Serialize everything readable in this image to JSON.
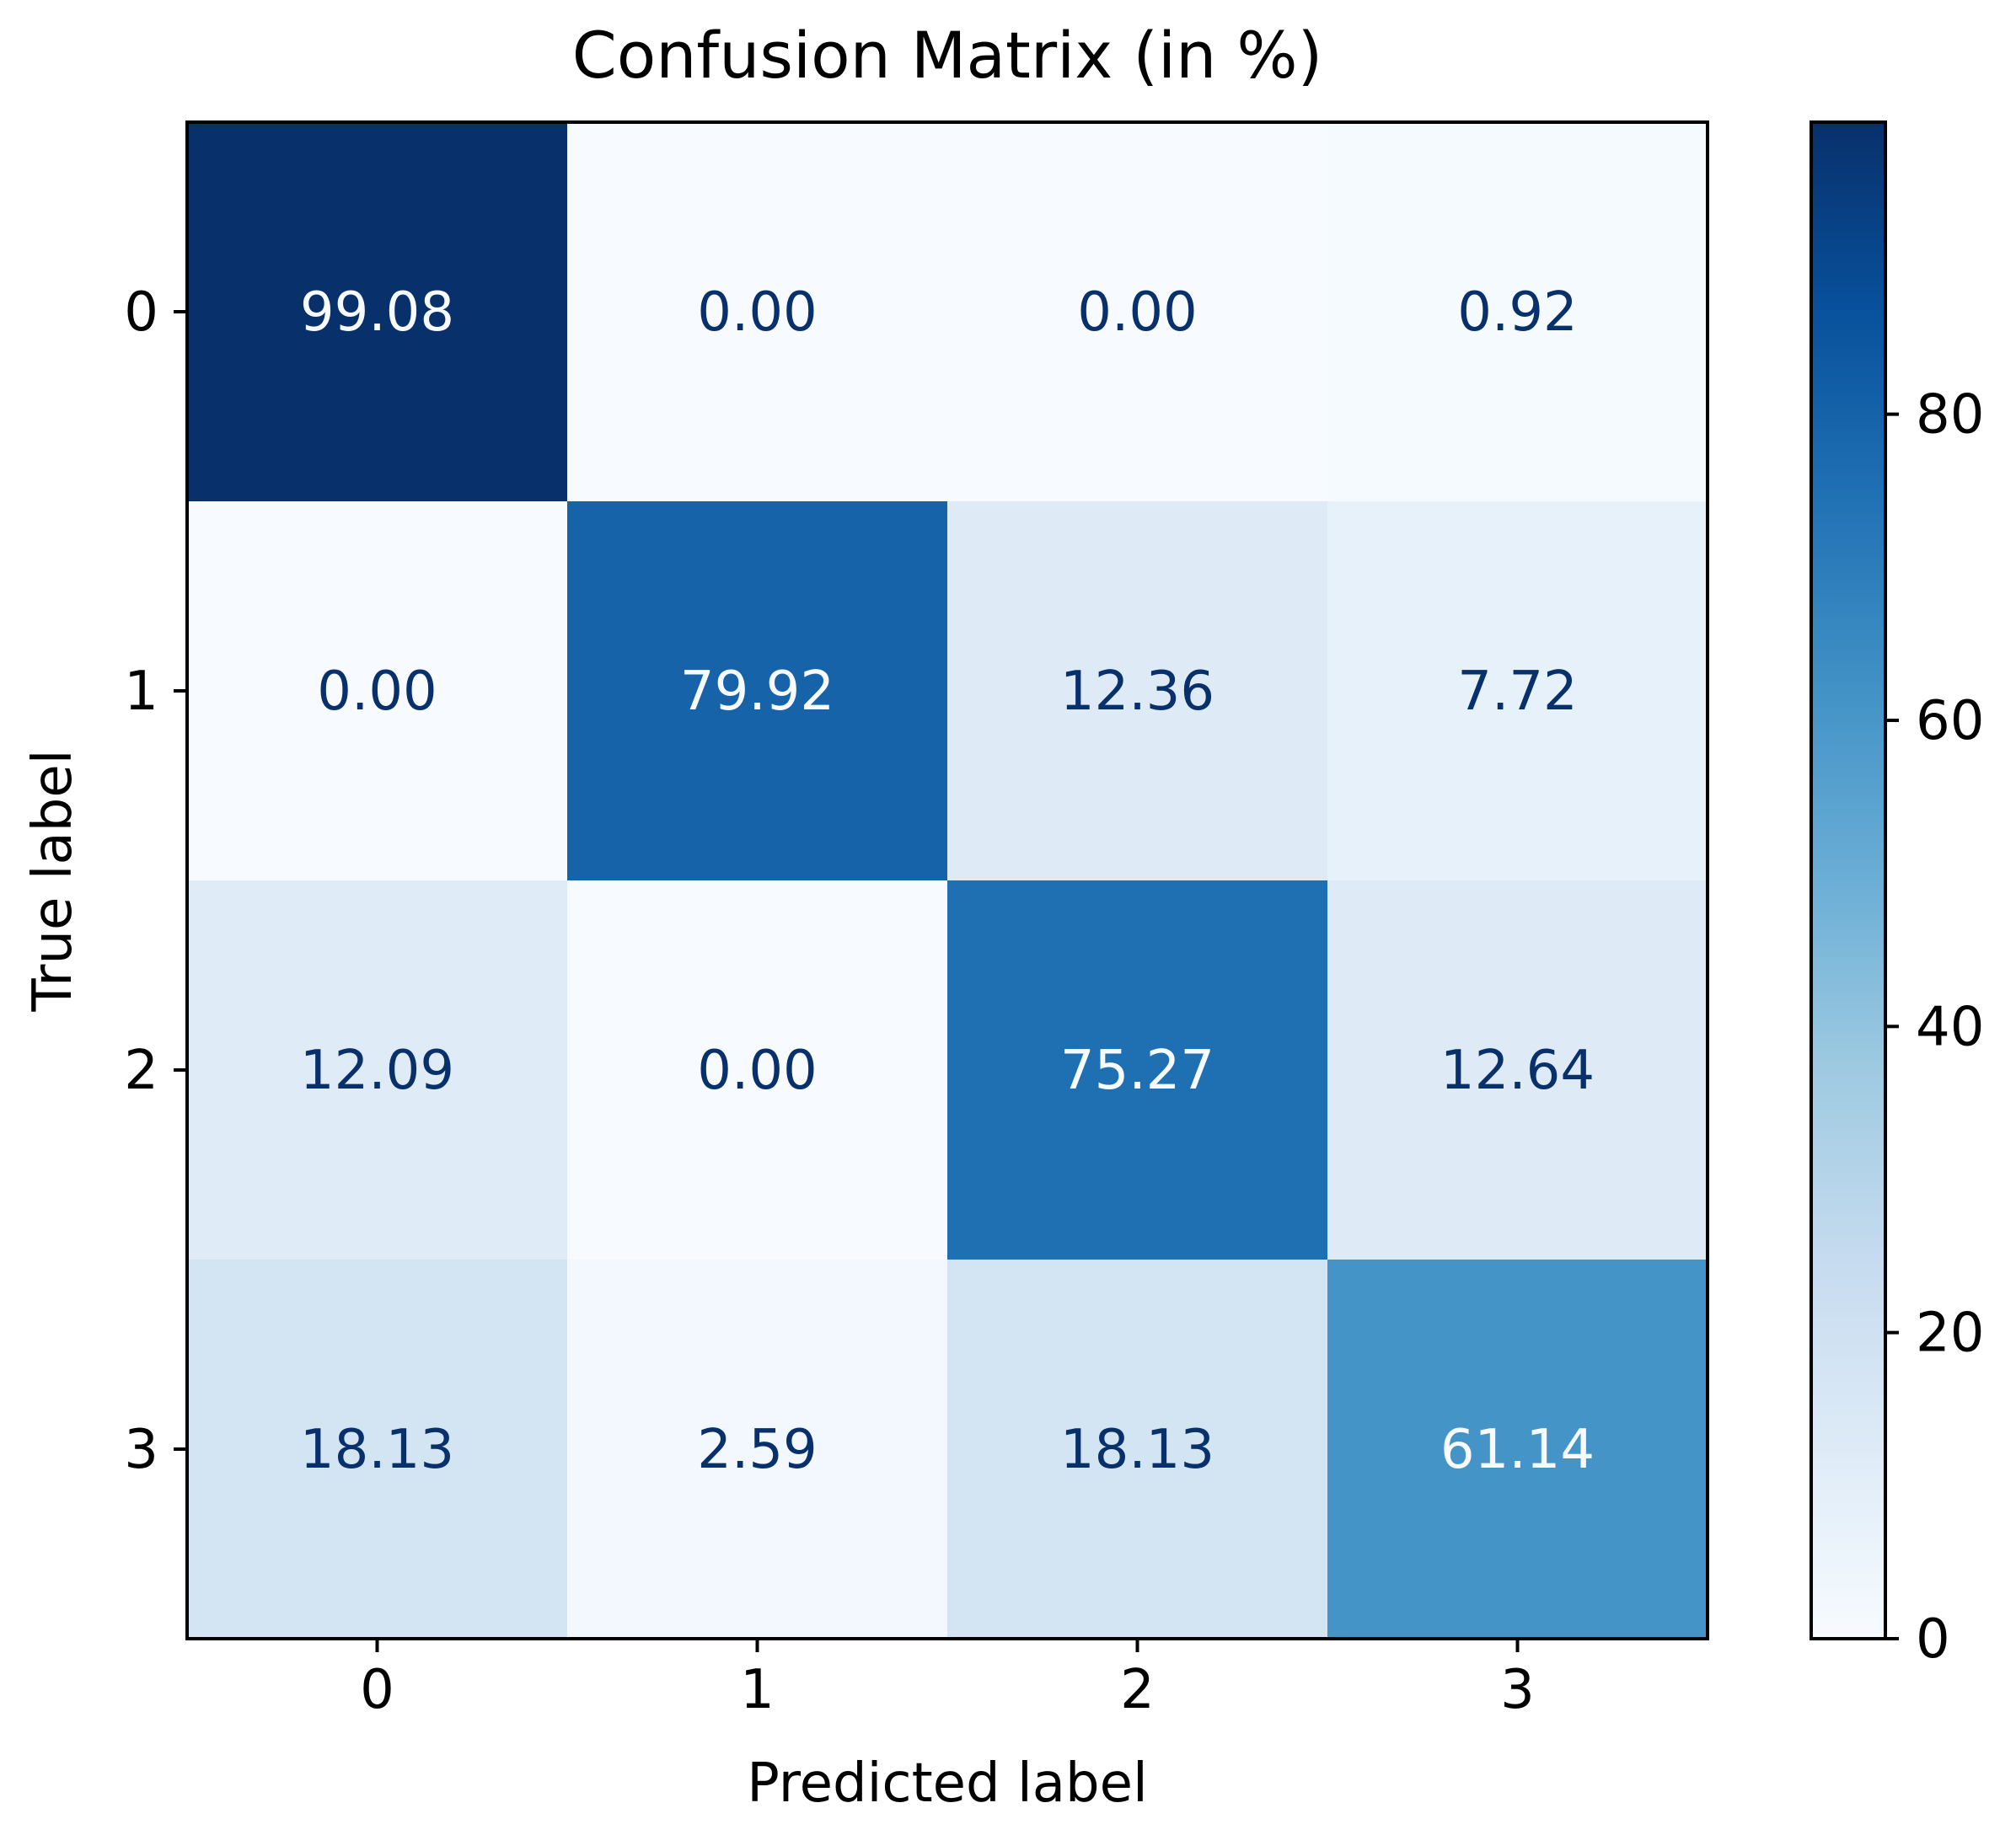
{
  "chart_data": {
    "type": "heatmap",
    "title": "Confusion Matrix (in %)",
    "xlabel": "Predicted label",
    "ylabel": "True label",
    "x_categories": [
      "0",
      "1",
      "2",
      "3"
    ],
    "y_categories": [
      "0",
      "1",
      "2",
      "3"
    ],
    "values": [
      [
        99.08,
        0.0,
        0.0,
        0.92
      ],
      [
        0.0,
        79.92,
        12.36,
        7.72
      ],
      [
        12.09,
        0.0,
        75.27,
        12.64
      ],
      [
        18.13,
        2.59,
        18.13,
        61.14
      ]
    ],
    "value_format": "2 decimals",
    "colormap": "Blues",
    "colorbar": {
      "range": [
        0,
        99.08
      ],
      "ticks": [
        0,
        20,
        40,
        60,
        80
      ],
      "tick_labels": [
        "0",
        "20",
        "40",
        "60",
        "80"
      ]
    },
    "grid": false,
    "legend": "colorbar at right"
  }
}
